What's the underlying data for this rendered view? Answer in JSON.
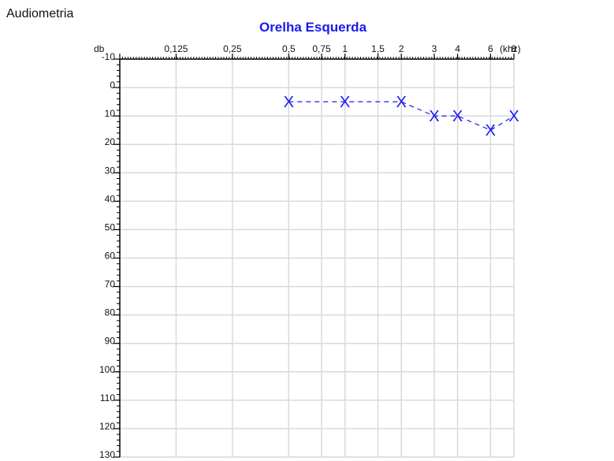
{
  "page": {
    "title": "Audiometria"
  },
  "chart_data": {
    "type": "line",
    "title": "Orelha Esquerda",
    "ylabel": "db",
    "xlabel": "(khz)",
    "title_color": "#1a1aee",
    "series_color": "#1a1aee",
    "grid_color": "#d9d9d9",
    "grid": true,
    "x_ticks": [
      {
        "label": "",
        "f": 0.0625
      },
      {
        "label": "0,125",
        "f": 0.125
      },
      {
        "label": "0,25",
        "f": 0.25
      },
      {
        "label": "0,5",
        "f": 0.5
      },
      {
        "label": "0,75",
        "f": 0.75
      },
      {
        "label": "1",
        "f": 1
      },
      {
        "label": "1,5",
        "f": 1.5
      },
      {
        "label": "2",
        "f": 2
      },
      {
        "label": "3",
        "f": 3
      },
      {
        "label": "4",
        "f": 4
      },
      {
        "label": "6",
        "f": 6
      },
      {
        "label": "8",
        "f": 8
      }
    ],
    "y_ticks": [
      "-10",
      "0",
      "10",
      "20",
      "30",
      "40",
      "50",
      "60",
      "70",
      "80",
      "90",
      "100",
      "110",
      "120",
      "130"
    ],
    "ylim": [
      -10,
      130
    ],
    "series": [
      {
        "marker": "X",
        "line_style": "dashed",
        "points": [
          {
            "f": 0.5,
            "db": 5
          },
          {
            "f": 1,
            "db": 5
          },
          {
            "f": 2,
            "db": 5
          },
          {
            "f": 3,
            "db": 10
          },
          {
            "f": 4,
            "db": 10
          },
          {
            "f": 6,
            "db": 15
          },
          {
            "f": 8,
            "db": 10
          }
        ]
      }
    ]
  }
}
